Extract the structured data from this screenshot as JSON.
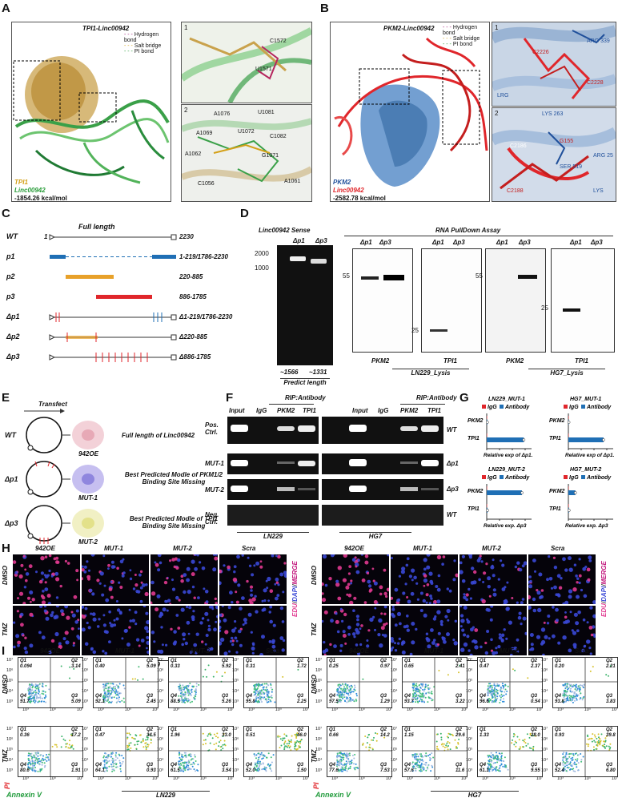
{
  "panels": [
    "A",
    "B",
    "C",
    "D",
    "E",
    "F",
    "G",
    "H",
    "I"
  ],
  "A": {
    "title": "TPI1-Linc00942",
    "legend": [
      "Hydrogen bond",
      "Salt bridge",
      "PI bond"
    ],
    "protein": "TPI1",
    "rna": "Linc00942",
    "energy": "-1854.26 kcal/mol",
    "inset1": "1",
    "inset2": "2",
    "residues1": [
      "C1572",
      "U1571"
    ],
    "residues2": [
      "A1076",
      "U1081",
      "A1069",
      "C1082",
      "U1072",
      "A1062",
      "G1071",
      "C1056",
      "A1061"
    ]
  },
  "B": {
    "title": "PKM2-Linc00942",
    "legend": [
      "Hydrogen bond",
      "Salt bridge",
      "PI bond"
    ],
    "protein": "PKM2",
    "rna": "Linc00942",
    "energy": "-2582.78 kcal/mol",
    "inset1": "1",
    "inset2": "2",
    "residues1": [
      "ARG 339",
      "C2228",
      "C2226",
      "LRG"
    ],
    "residues2": [
      "LYS 263",
      "C2186",
      "G155",
      "ARG 25",
      "SER 519",
      "C2188",
      "LYS"
    ]
  },
  "C": {
    "rows": [
      {
        "name": "WT",
        "start": "1",
        "desc": "Full length",
        "end": "2230"
      },
      {
        "name": "p1",
        "end": "1-219/1786-2230"
      },
      {
        "name": "p2",
        "end": "220-885"
      },
      {
        "name": "p3",
        "end": "886-1785"
      },
      {
        "name": "Δp1",
        "end": "Δ1-219/1786-2230"
      },
      {
        "name": "Δp2",
        "end": "Δ220-885"
      },
      {
        "name": "Δp3",
        "end": "Δ886-1785"
      }
    ]
  },
  "D": {
    "gel_title": "Linc00942 Sense",
    "gel_lanes": [
      "Δp1",
      "Δp3"
    ],
    "gel_markers": [
      "2000",
      "1000"
    ],
    "gel_sizes": [
      "~1566",
      "~1331"
    ],
    "gel_caption": "Predict length",
    "pulldown_title": "RNA PullDown Assay",
    "blot_lanes": [
      "Δp1",
      "Δp3"
    ],
    "blots": [
      {
        "marker": "55",
        "protein": "PKM2"
      },
      {
        "marker": "25",
        "protein": "TPI1"
      },
      {
        "marker": "55",
        "protein": "PKM2"
      },
      {
        "marker": "25",
        "protein": "TPI1"
      }
    ],
    "groups": [
      "LN229_Lysis",
      "HG7_Lysis"
    ]
  },
  "E": {
    "transfect": "Transfect",
    "rows": [
      {
        "name": "WT",
        "cell": "942OE",
        "desc": "Full length of Linc00942"
      },
      {
        "name": "Δp1",
        "cell": "MUT-1",
        "desc": "Best Predicted  Modle of PKM1/2 Binding Site Missing"
      },
      {
        "name": "Δp3",
        "cell": "MUT-2",
        "desc": "Best Predicted  Modle of TPI1 Binding Site Missing"
      }
    ]
  },
  "F": {
    "header": "RIP:Antibody",
    "lanes": [
      "Input",
      "IgG",
      "PKM2",
      "TPI1"
    ],
    "rows": [
      "Pos. Ctrl.",
      "MUT-1",
      "MUT-2",
      "Neg. Ctrl."
    ],
    "right_labels": [
      "WT",
      "Δp1",
      "Δp3",
      "WT"
    ],
    "groups": [
      "LN229",
      "HG7"
    ]
  },
  "G": {
    "legend": [
      "IgG",
      "Antibody"
    ],
    "colors": {
      "igg": "#e0262b",
      "antibody": "#1f6fb5"
    },
    "charts": [
      {
        "title": "LN229_MUT-1",
        "categories": [
          "PKM2",
          "TPI1"
        ],
        "igg": [
          0.3,
          0.5
        ],
        "antibody": [
          1.0,
          58
        ],
        "xlabel": "Relative exp of Δp1.",
        "xmax": 70
      },
      {
        "title": "HG7_MUT-1",
        "categories": [
          "PKM2",
          "TPI1"
        ],
        "igg": [
          0.3,
          0.5
        ],
        "antibody": [
          0.8,
          55
        ],
        "xlabel": "Relative exp of Δp1.",
        "xmax": 70
      },
      {
        "title": "LN229_MUT-2",
        "categories": [
          "PKM2",
          "TPI1"
        ],
        "igg": [
          0.4,
          0.4
        ],
        "antibody": [
          55,
          1.2
        ],
        "xlabel": "Relative exp. Δp3",
        "xmax": 70
      },
      {
        "title": "HG7_MUT-2",
        "categories": [
          "PKM2",
          "TPI1"
        ],
        "igg": [
          0.4,
          0.4
        ],
        "antibody": [
          11,
          1.0
        ],
        "xlabel": "Relative exp. Δp3",
        "xmax": 70
      }
    ],
    "ticks": [
      "0",
      "20",
      "40",
      "60"
    ]
  },
  "H": {
    "cols": [
      "942OE",
      "MUT-1",
      "MUT-2",
      "Scra"
    ],
    "rows": [
      "DMSO",
      "TMZ"
    ],
    "side": [
      "EDU",
      "/",
      "DAPI",
      "/",
      "MERGE"
    ],
    "groups": [
      "LN229",
      "HG7"
    ]
  },
  "I": {
    "cols": [
      "942OE",
      "MUT-1",
      "MUT-2",
      "Scra"
    ],
    "rows": [
      "DMSO",
      "TMZ"
    ],
    "axis_y": "PI",
    "axis_x": "Annexin V",
    "groups": [
      "LN229",
      "HG7"
    ],
    "yticks": [
      "10⁷",
      "10⁶",
      "10⁵",
      "10⁴",
      "10³"
    ],
    "xticks": [
      "10³",
      "10⁵",
      "10⁷"
    ],
    "ln229": [
      [
        {
          "q1": "0.094",
          "q2": "3.14",
          "q4": "91.7",
          "q3": "5.09"
        },
        {
          "q1": "0.40",
          "q2": "5.09",
          "q4": "92.1",
          "q3": "2.45"
        },
        {
          "q1": "0.33",
          "q2": "5.92",
          "q4": "88.5",
          "q3": "5.26"
        },
        {
          "q1": "0.31",
          "q2": "1.72",
          "q4": "95.8",
          "q3": "2.25"
        }
      ],
      [
        {
          "q1": "0.36",
          "q2": "17.2",
          "q4": "80.6",
          "q3": "1.91"
        },
        {
          "q1": "0.47",
          "q2": "34.5",
          "q4": "64.1",
          "q3": "0.93"
        },
        {
          "q1": "1.96",
          "q2": "33.0",
          "q4": "61.5",
          "q3": "3.54"
        },
        {
          "q1": "0.51",
          "q2": "46.0",
          "q4": "52.0",
          "q3": "1.50"
        }
      ]
    ],
    "hg7": [
      [
        {
          "q1": "0.25",
          "q2": "0.97",
          "q4": "97.5",
          "q3": "1.29"
        },
        {
          "q1": "0.65",
          "q2": "2.41",
          "q4": "93.7",
          "q3": "3.22"
        },
        {
          "q1": "0.47",
          "q2": "2.37",
          "q4": "96.6",
          "q3": "0.54"
        },
        {
          "q1": "0.20",
          "q2": "2.21",
          "q4": "93.8",
          "q3": "3.83"
        }
      ],
      [
        {
          "q1": "0.66",
          "q2": "14.2",
          "q4": "77.6",
          "q3": "7.53"
        },
        {
          "q1": "1.15",
          "q2": "29.6",
          "q4": "57.6",
          "q3": "11.6"
        },
        {
          "q1": "1.33",
          "q2": "28.0",
          "q4": "61.1",
          "q3": "9.55"
        },
        {
          "q1": "0.93",
          "q2": "39.8",
          "q4": "52.4",
          "q3": "6.80"
        }
      ]
    ]
  }
}
